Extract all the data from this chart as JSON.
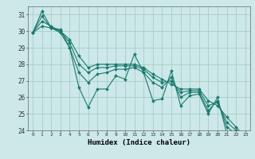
{
  "xlabel": "Humidex (Indice chaleur)",
  "ylabel": "",
  "background_color": "#cce8e8",
  "grid_color": "#aacccc",
  "line_color": "#1a7a6e",
  "series": [
    [
      29.9,
      31.2,
      30.2,
      30.1,
      29.0,
      26.6,
      25.4,
      26.5,
      26.5,
      27.3,
      27.1,
      28.6,
      27.5,
      25.8,
      25.9,
      27.6,
      25.5,
      26.1,
      26.2,
      25.0,
      26.0,
      23.8,
      23.6,
      23.6
    ],
    [
      29.9,
      30.9,
      30.2,
      29.9,
      29.0,
      27.5,
      26.9,
      27.4,
      27.5,
      27.7,
      27.7,
      27.8,
      27.5,
      26.9,
      26.6,
      27.2,
      26.0,
      26.3,
      26.3,
      25.2,
      25.8,
      24.2,
      23.8,
      23.6
    ],
    [
      29.9,
      30.6,
      30.3,
      30.0,
      29.3,
      28.0,
      27.5,
      27.8,
      27.8,
      27.9,
      27.9,
      27.9,
      27.7,
      27.2,
      26.9,
      27.0,
      26.3,
      26.4,
      26.4,
      25.5,
      25.7,
      24.5,
      24.0,
      23.6
    ],
    [
      29.9,
      30.3,
      30.2,
      30.0,
      29.5,
      28.5,
      27.8,
      28.0,
      28.0,
      28.0,
      28.0,
      28.0,
      27.8,
      27.4,
      27.1,
      26.8,
      26.5,
      26.5,
      26.5,
      25.8,
      25.5,
      24.8,
      24.2,
      23.6
    ]
  ],
  "xmin": -0.5,
  "xmax": 23.5,
  "ymin": 24,
  "ymax": 31.5,
  "yticks": [
    24,
    25,
    26,
    27,
    28,
    29,
    30,
    31
  ],
  "xticks": [
    0,
    1,
    2,
    3,
    4,
    5,
    6,
    7,
    8,
    9,
    10,
    11,
    12,
    13,
    14,
    15,
    16,
    17,
    18,
    19,
    20,
    21,
    22,
    23
  ]
}
